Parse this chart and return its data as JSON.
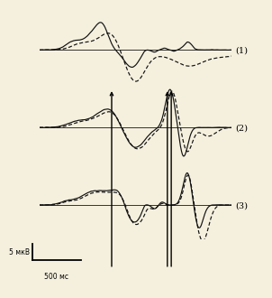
{
  "background_color": "#f5f0de",
  "panel_labels": [
    "(1)",
    "(2)",
    "(3)"
  ],
  "label_fontsize": 7,
  "scale_label_uv": "5 мкВ",
  "scale_label_ms": "500 мс",
  "line_color": "#111111"
}
